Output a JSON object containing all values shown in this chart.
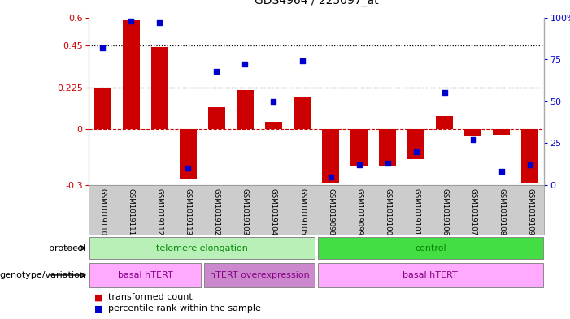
{
  "title": "GDS4964 / 225097_at",
  "samples": [
    "GSM1019110",
    "GSM1019111",
    "GSM1019112",
    "GSM1019113",
    "GSM1019102",
    "GSM1019103",
    "GSM1019104",
    "GSM1019105",
    "GSM1019098",
    "GSM1019099",
    "GSM1019100",
    "GSM1019101",
    "GSM1019106",
    "GSM1019107",
    "GSM1019108",
    "GSM1019109"
  ],
  "red_values": [
    0.225,
    0.585,
    0.44,
    -0.27,
    0.12,
    0.21,
    0.04,
    0.17,
    -0.285,
    -0.2,
    -0.195,
    -0.16,
    0.07,
    -0.04,
    -0.03,
    -0.29
  ],
  "blue_values": [
    82,
    98,
    97,
    10,
    68,
    72,
    50,
    74,
    5,
    12,
    13,
    20,
    55,
    27,
    8,
    12
  ],
  "ylim_left": [
    -0.3,
    0.6
  ],
  "ylim_right": [
    0,
    100
  ],
  "yticks_left": [
    -0.3,
    0,
    0.225,
    0.45,
    0.6
  ],
  "yticks_right": [
    0,
    25,
    50,
    75,
    100
  ],
  "hlines": [
    0.225,
    0.45
  ],
  "protocol_groups": [
    {
      "label": "telomere elongation",
      "start": 0,
      "end": 8,
      "color": "#b8f0b8"
    },
    {
      "label": "control",
      "start": 8,
      "end": 16,
      "color": "#44dd44"
    }
  ],
  "genotype_groups": [
    {
      "label": "basal hTERT",
      "start": 0,
      "end": 4,
      "color": "#ffaaff"
    },
    {
      "label": "hTERT overexpression",
      "start": 4,
      "end": 8,
      "color": "#cc88cc"
    },
    {
      "label": "basal hTERT",
      "start": 8,
      "end": 16,
      "color": "#ffaaff"
    }
  ],
  "bar_color": "#cc0000",
  "dot_color": "#0000cc",
  "zero_line_color": "#cc0000",
  "bg_color": "#ffffff",
  "tick_bg": "#cccccc",
  "protocol_text_color1": "#008800",
  "protocol_text_color2": "#008800",
  "genotype_text_color": "#880088"
}
